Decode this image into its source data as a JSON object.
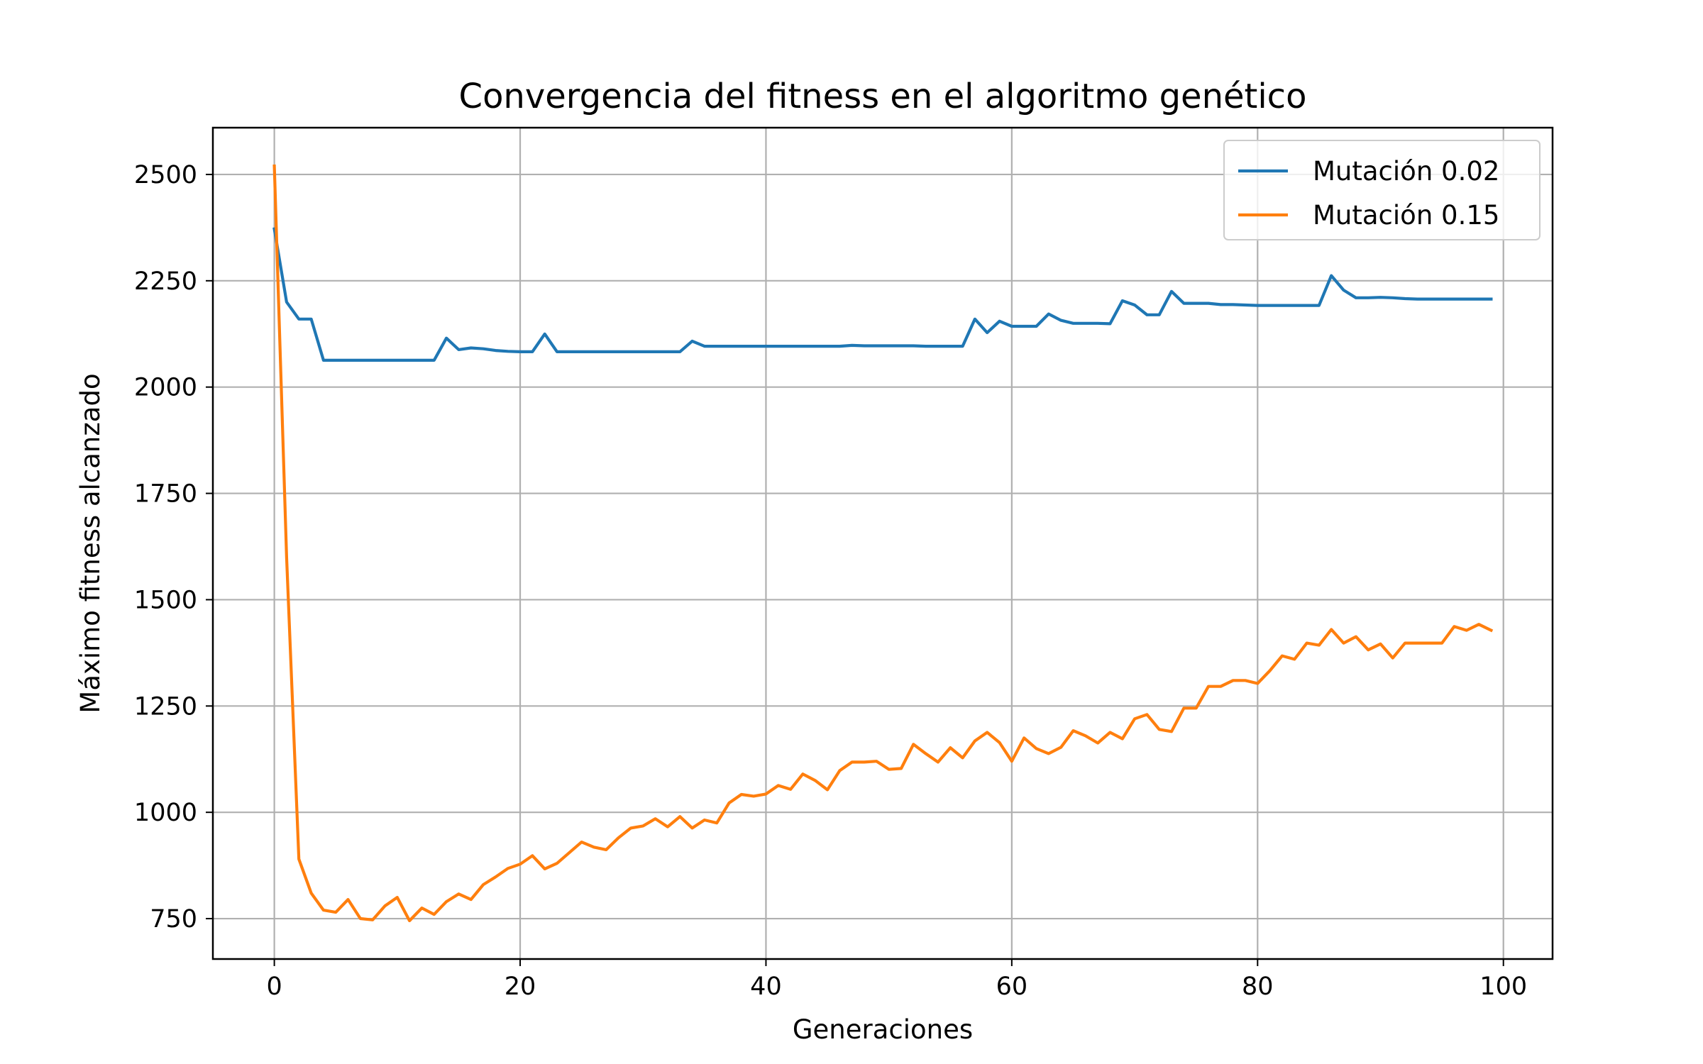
{
  "chart_data": {
    "type": "line",
    "title": "Convergencia del fitness en el algoritmo genético",
    "xlabel": "Generaciones",
    "ylabel": "Máximo fitness alcanzado",
    "xlim": [
      -5,
      104
    ],
    "ylim": [
      655,
      2610
    ],
    "xticks": [
      0,
      20,
      40,
      60,
      80,
      100
    ],
    "yticks": [
      750,
      1000,
      1250,
      1500,
      1750,
      2000,
      2250,
      2500
    ],
    "grid": true,
    "legend_position": "top-right",
    "x": [
      0,
      1,
      2,
      3,
      4,
      5,
      6,
      7,
      8,
      9,
      10,
      11,
      12,
      13,
      14,
      15,
      16,
      17,
      18,
      19,
      20,
      21,
      22,
      23,
      24,
      25,
      26,
      27,
      28,
      29,
      30,
      31,
      32,
      33,
      34,
      35,
      36,
      37,
      38,
      39,
      40,
      41,
      42,
      43,
      44,
      45,
      46,
      47,
      48,
      49,
      50,
      51,
      52,
      53,
      54,
      55,
      56,
      57,
      58,
      59,
      60,
      61,
      62,
      63,
      64,
      65,
      66,
      67,
      68,
      69,
      70,
      71,
      72,
      73,
      74,
      75,
      76,
      77,
      78,
      79,
      80,
      81,
      82,
      83,
      84,
      85,
      86,
      87,
      88,
      89,
      90,
      91,
      92,
      93,
      94,
      95,
      96,
      97,
      98,
      99
    ],
    "series": [
      {
        "name": "Mutación 0.02",
        "color": "#1f77b4",
        "values": [
          2372,
          2200,
          2160,
          2160,
          2063,
          2063,
          2063,
          2063,
          2063,
          2063,
          2063,
          2063,
          2063,
          2063,
          2115,
          2088,
          2092,
          2090,
          2086,
          2084,
          2083,
          2083,
          2125,
          2083,
          2083,
          2083,
          2083,
          2083,
          2083,
          2083,
          2083,
          2083,
          2083,
          2083,
          2108,
          2096,
          2096,
          2096,
          2096,
          2096,
          2096,
          2096,
          2096,
          2096,
          2096,
          2096,
          2096,
          2098,
          2097,
          2097,
          2097,
          2097,
          2097,
          2096,
          2096,
          2096,
          2096,
          2160,
          2128,
          2155,
          2143,
          2143,
          2143,
          2172,
          2157,
          2150,
          2150,
          2150,
          2149,
          2203,
          2193,
          2170,
          2170,
          2225,
          2197,
          2197,
          2197,
          2194,
          2194,
          2193,
          2192,
          2192,
          2192,
          2192,
          2192,
          2192,
          2262,
          2228,
          2210,
          2210,
          2211,
          2210,
          2208,
          2207,
          2207,
          2207,
          2207,
          2207,
          2207,
          2207
        ]
      },
      {
        "name": "Mutación 0.15",
        "color": "#ff7f0e",
        "values": [
          2520,
          1600,
          890,
          810,
          770,
          765,
          795,
          750,
          747,
          780,
          800,
          745,
          775,
          760,
          790,
          808,
          795,
          830,
          848,
          868,
          878,
          898,
          867,
          880,
          905,
          930,
          918,
          912,
          940,
          963,
          968,
          985,
          966,
          990,
          963,
          982,
          975,
          1022,
          1042,
          1038,
          1043,
          1063,
          1054,
          1090,
          1075,
          1053,
          1098,
          1118,
          1118,
          1120,
          1101,
          1103,
          1160,
          1138,
          1118,
          1152,
          1128,
          1168,
          1188,
          1164,
          1120,
          1175,
          1150,
          1138,
          1153,
          1192,
          1180,
          1163,
          1188,
          1173,
          1220,
          1230,
          1195,
          1190,
          1245,
          1245,
          1296,
          1296,
          1310,
          1310,
          1303,
          1333,
          1368,
          1360,
          1398,
          1393,
          1430,
          1398,
          1413,
          1382,
          1396,
          1363,
          1398,
          1398,
          1398,
          1398,
          1437,
          1428,
          1442,
          1428
        ]
      }
    ]
  }
}
